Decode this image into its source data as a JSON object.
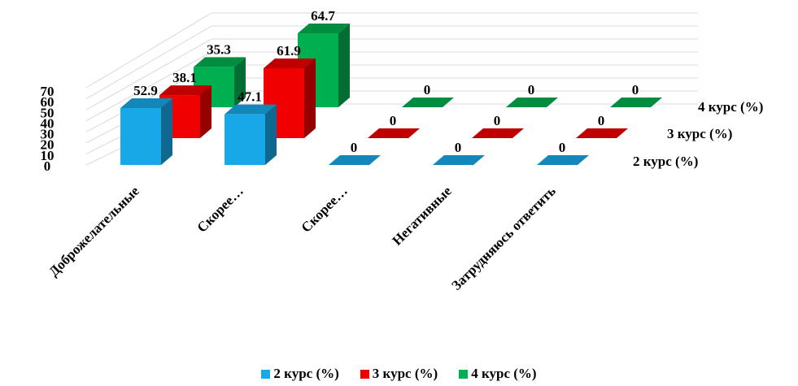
{
  "chart_data": {
    "type": "bar",
    "subtype": "3d-clustered-columns",
    "title": "",
    "xlabel": "",
    "ylabel": "",
    "categories": [
      "Доброжелательные",
      "Скорее…",
      "Скорее…",
      "Негативные",
      "Затрудняюсь ответить"
    ],
    "series": [
      {
        "name": "2 курс (%)",
        "values": [
          52.9,
          47.1,
          0,
          0,
          0
        ],
        "color": "#18a8e8"
      },
      {
        "name": "3 курс (%)",
        "values": [
          38.1,
          61.9,
          0,
          0,
          0
        ],
        "color": "#f00000"
      },
      {
        "name": "4 курс (%)",
        "values": [
          35.3,
          64.7,
          0,
          0,
          0
        ],
        "color": "#00b050"
      }
    ],
    "data_labels": [
      [
        "52.9",
        "47.1",
        "0",
        "0",
        "0"
      ],
      [
        "38.1",
        "61.9",
        "0",
        "0",
        "0"
      ],
      [
        "35.3",
        "64.7",
        "0",
        "0",
        "0"
      ]
    ],
    "yticks": [
      "0",
      "10",
      "20",
      "30",
      "40",
      "50",
      "60",
      "70"
    ],
    "ylim": [
      0,
      70
    ],
    "grid": true,
    "legend_position": "bottom"
  }
}
